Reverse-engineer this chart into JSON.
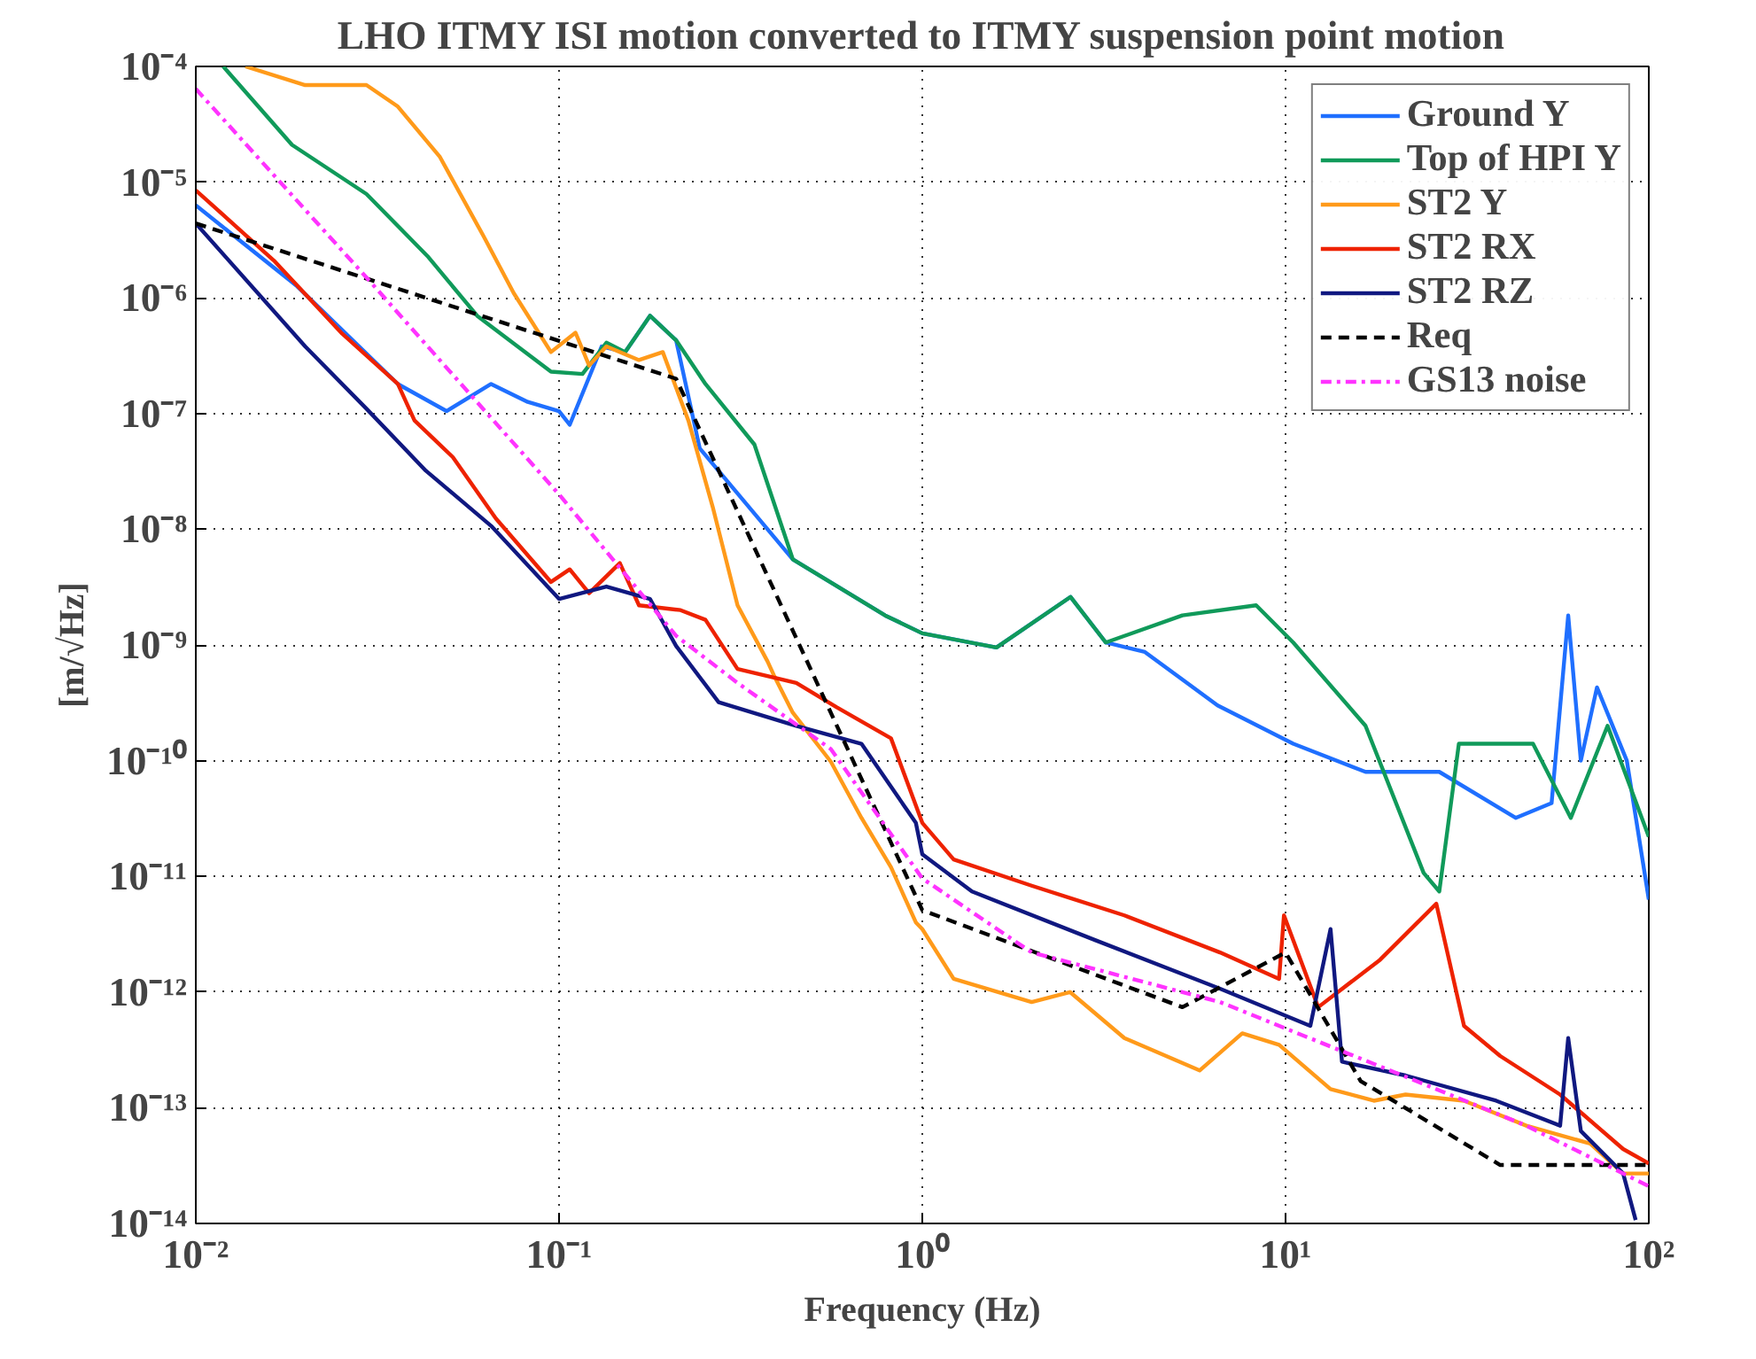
{
  "chart_data": {
    "type": "line",
    "title": "LHO ITMY ISI motion converted to ITMY suspension point motion",
    "xlabel": "Frequency (Hz)",
    "ylabel": "[m/√Hz]",
    "log": "xy",
    "grid": true,
    "legend": "top right",
    "xlim": [
      0.01,
      100
    ],
    "ylim": [
      1e-14,
      0.0001
    ],
    "xticks": [
      {
        "value": 0.01,
        "label": "10⁻²"
      },
      {
        "value": 0.1,
        "label": "10⁻¹"
      },
      {
        "value": 1,
        "label": "10⁰"
      },
      {
        "value": 10,
        "label": "10¹"
      },
      {
        "value": 100,
        "label": "10²"
      }
    ],
    "yticks": [
      {
        "value": 1e-14,
        "label": "10⁻¹⁴"
      },
      {
        "value": 1e-13,
        "label": "10⁻¹³"
      },
      {
        "value": 1e-12,
        "label": "10⁻¹²"
      },
      {
        "value": 1e-11,
        "label": "10⁻¹¹"
      },
      {
        "value": 1e-10,
        "label": "10⁻¹⁰"
      },
      {
        "value": 1e-09,
        "label": "10⁻⁹"
      },
      {
        "value": 1e-08,
        "label": "10⁻⁸"
      },
      {
        "value": 1e-07,
        "label": "10⁻⁷"
      },
      {
        "value": 1e-06,
        "label": "10⁻⁶"
      },
      {
        "value": 1e-05,
        "label": "10⁻⁵"
      },
      {
        "value": 0.0001,
        "label": "10⁻⁴"
      }
    ],
    "series": [
      {
        "name": "Ground Y",
        "color": "#1f6fff",
        "line_style": "solid",
        "x": [
          0.01,
          0.019,
          0.036,
          0.049,
          0.065,
          0.082,
          0.1,
          0.107,
          0.131,
          0.152,
          0.178,
          0.21,
          0.244,
          0.44,
          0.79,
          1.0,
          1.6,
          2.56,
          3.2,
          4.1,
          6.5,
          10.5,
          16.6,
          26.5,
          43,
          54,
          60,
          65,
          72,
          87,
          100
        ],
        "values": [
          6.3e-06,
          1.26e-06,
          1.8e-07,
          1.05e-07,
          1.8e-07,
          1.26e-07,
          1.05e-07,
          8e-08,
          3.8e-07,
          3.4e-07,
          7e-07,
          4.3e-07,
          5e-08,
          5.5e-09,
          1.8e-09,
          1.26e-09,
          9.5e-10,
          2.6e-09,
          1.05e-09,
          8.7e-10,
          3e-10,
          1.4e-10,
          8e-11,
          8e-11,
          3.2e-11,
          4.3e-11,
          1.8e-09,
          1e-10,
          4.3e-10,
          1e-10,
          6.3e-12
        ]
      },
      {
        "name": "Top of HPI Y",
        "color": "#109a5a",
        "line_style": "solid",
        "x": [
          0.0119,
          0.0184,
          0.0295,
          0.0434,
          0.0595,
          0.095,
          0.116,
          0.135,
          0.152,
          0.178,
          0.21,
          0.253,
          0.345,
          0.44,
          0.79,
          1.0,
          1.6,
          2.56,
          3.2,
          5.2,
          8.3,
          10.5,
          16.6,
          24,
          26.5,
          30,
          48,
          61,
          77,
          100
        ],
        "values": [
          0.0001,
          2.1e-05,
          7.9e-06,
          2.3e-06,
          7e-07,
          2.3e-07,
          2.2e-07,
          4.1e-07,
          3.4e-07,
          7e-07,
          4.3e-07,
          1.8e-07,
          5.4e-08,
          5.5e-09,
          1.8e-09,
          1.26e-09,
          9.5e-10,
          2.6e-09,
          1.05e-09,
          1.8e-09,
          2.2e-09,
          1.05e-09,
          2e-10,
          1.07e-11,
          7.4e-12,
          1.4e-10,
          1.4e-10,
          3.2e-11,
          2e-10,
          2.2e-11
        ]
      },
      {
        "name": "ST2 Y",
        "color": "#ff9a1a",
        "line_style": "solid",
        "x": [
          0.0137,
          0.02,
          0.0295,
          0.036,
          0.047,
          0.062,
          0.075,
          0.095,
          0.111,
          0.121,
          0.135,
          0.166,
          0.193,
          0.227,
          0.265,
          0.31,
          0.375,
          0.39,
          0.44,
          0.56,
          0.68,
          0.82,
          0.96,
          1.0,
          1.22,
          2.0,
          2.55,
          3.6,
          5.8,
          7.6,
          9.6,
          13.3,
          17.5,
          21.4,
          31,
          46,
          69,
          85,
          100
        ],
        "values": [
          0.0001,
          6.9e-05,
          6.9e-05,
          4.5e-05,
          1.65e-05,
          3.4e-06,
          1.1e-06,
          3.4e-07,
          5e-07,
          2.6e-07,
          3.8e-07,
          2.9e-07,
          3.4e-07,
          8.7e-08,
          1.55e-08,
          2.2e-09,
          7.2e-10,
          5.5e-10,
          2.6e-10,
          9.8e-11,
          3.2e-11,
          1.2e-11,
          4e-12,
          3.5e-12,
          1.3e-12,
          8.2e-13,
          1e-12,
          4e-13,
          2.1e-13,
          4.4e-13,
          3.5e-13,
          1.45e-13,
          1.15e-13,
          1.3e-13,
          1.15e-13,
          7e-14,
          4.9e-14,
          2.7e-14,
          2.7e-14
        ]
      },
      {
        "name": "ST2 RX",
        "color": "#ee2200",
        "line_style": "solid",
        "x": [
          0.01,
          0.0164,
          0.0253,
          0.036,
          0.04,
          0.051,
          0.067,
          0.095,
          0.107,
          0.121,
          0.147,
          0.166,
          0.216,
          0.253,
          0.31,
          0.45,
          0.58,
          0.82,
          1.0,
          1.22,
          2.0,
          3.6,
          6.6,
          9.6,
          9.9,
          12.3,
          18.2,
          26,
          31,
          39,
          57,
          85,
          100
        ],
        "values": [
          8.5e-06,
          2.1e-06,
          4.9e-07,
          1.8e-07,
          8.7e-08,
          4.2e-08,
          1.24e-08,
          3.5e-09,
          4.5e-09,
          2.8e-09,
          5.1e-09,
          2.2e-09,
          2e-09,
          1.65e-09,
          6.2e-10,
          4.7e-10,
          2.9e-10,
          1.56e-10,
          2.9e-11,
          1.4e-11,
          8.3e-12,
          4.6e-12,
          2.2e-12,
          1.3e-12,
          4.6e-12,
          7.4e-13,
          1.9e-12,
          5.8e-12,
          5.1e-13,
          2.8e-13,
          1.3e-13,
          4.4e-14,
          3.3e-14
        ]
      },
      {
        "name": "ST2 RZ",
        "color": "#101880",
        "line_style": "solid",
        "x": [
          0.01,
          0.02,
          0.0295,
          0.043,
          0.065,
          0.1,
          0.135,
          0.178,
          0.21,
          0.275,
          0.45,
          0.68,
          0.96,
          1.0,
          1.37,
          3.0,
          6.6,
          11.7,
          13.3,
          14.3,
          21.4,
          38,
          57,
          60,
          65,
          85,
          92
        ],
        "values": [
          4.4e-06,
          3.8e-07,
          1.1e-07,
          3.2e-08,
          1.07e-08,
          2.5e-09,
          3.2e-09,
          2.5e-09,
          9.8e-10,
          3.2e-10,
          2e-10,
          1.4e-10,
          2.9e-11,
          1.55e-11,
          7.4e-12,
          2.8e-12,
          1.07e-12,
          5.1e-13,
          3.5e-12,
          2.5e-13,
          1.9e-13,
          1.15e-13,
          7e-14,
          4e-13,
          6.3e-14,
          2.7e-14,
          1.07e-14
        ]
      },
      {
        "name": "Req",
        "color": "#000000",
        "line_style": "dashed",
        "x": [
          0.01,
          0.21,
          1.0,
          5.2,
          10,
          16.1,
          39,
          100
        ],
        "values": [
          4.4e-06,
          2e-07,
          5.1e-12,
          7.4e-13,
          2.2e-12,
          1.7e-13,
          3.2e-14,
          3.2e-14
        ]
      },
      {
        "name": "GS13 noise",
        "color": "#ff33ff",
        "line_style": "dashdot",
        "x": [
          0.01,
          0.0295,
          0.1,
          0.21,
          0.31,
          0.56,
          1.0,
          2.0,
          6.6,
          21,
          46,
          100
        ],
        "values": [
          6.4e-05,
          1.5e-06,
          2e-08,
          1.2e-09,
          4.7e-10,
          1.26e-10,
          9.6e-12,
          2.2e-12,
          8.2e-13,
          1.9e-13,
          7e-14,
          2.1e-14
        ]
      }
    ]
  }
}
